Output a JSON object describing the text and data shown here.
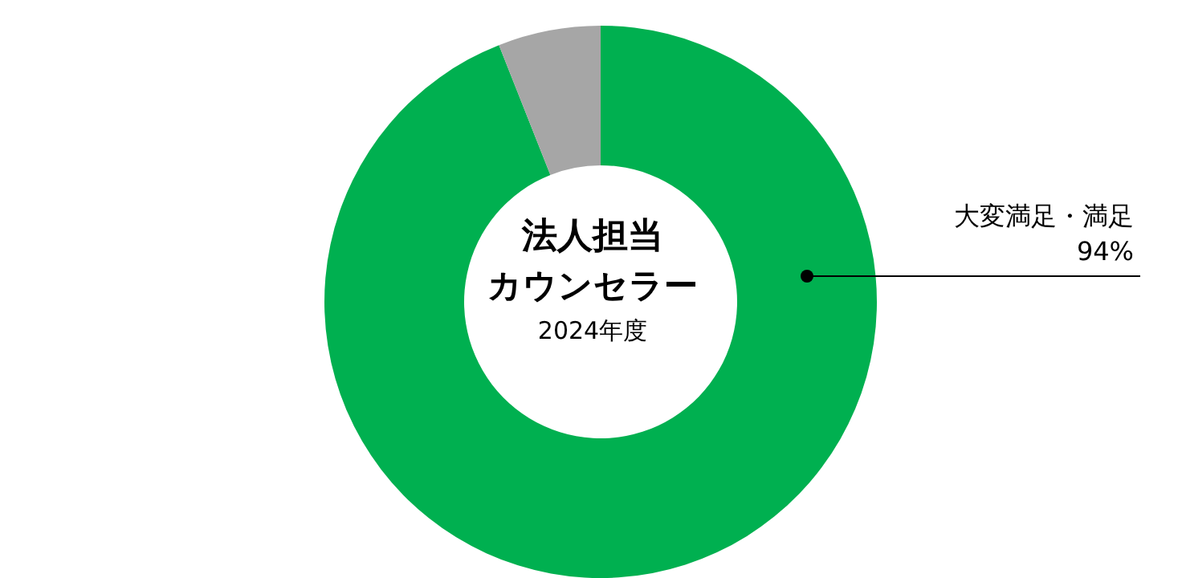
{
  "chart_data": {
    "type": "donut",
    "title": "法人担当",
    "subtitle": "カウンセラー",
    "annotations": [
      "2024年度"
    ],
    "categories": [
      "大変満足・満足",
      null
    ],
    "values": [
      94,
      6
    ],
    "colors": [
      "#00b050",
      "#a6a6a6"
    ],
    "value_labels": [
      "94%",
      null
    ],
    "legend": false
  }
}
